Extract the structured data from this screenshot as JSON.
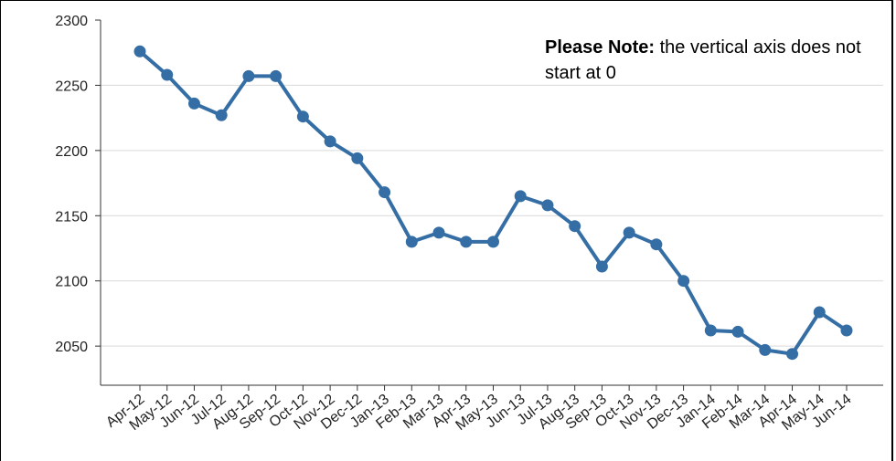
{
  "chart_data": {
    "type": "line",
    "title": "",
    "xlabel": "",
    "ylabel": "",
    "ylim": [
      2020,
      2300
    ],
    "yticks": [
      2050,
      2100,
      2150,
      2200,
      2250,
      2300
    ],
    "grid": true,
    "categories": [
      "Apr-12",
      "May-12",
      "Jun-12",
      "Jul-12",
      "Aug-12",
      "Sep-12",
      "Oct-12",
      "Nov-12",
      "Dec-12",
      "Jan-13",
      "Feb-13",
      "Mar-13",
      "Apr-13",
      "May-13",
      "Jun-13",
      "Jul-13",
      "Aug-13",
      "Sep-13",
      "Oct-13",
      "Nov-13",
      "Dec-13",
      "Jan-14",
      "Feb-14",
      "Mar-14",
      "Apr-14",
      "May-14",
      "Jun-14"
    ],
    "series": [
      {
        "values": [
          2276,
          2258,
          2236,
          2227,
          2257,
          2257,
          2226,
          2207,
          2194,
          2168,
          2130,
          2137,
          2130,
          2130,
          2165,
          2158,
          2142,
          2111,
          2137,
          2128,
          2100,
          2062,
          2061,
          2047,
          2044,
          2076,
          2062
        ],
        "color": "#356ea5"
      }
    ],
    "annotation": {
      "bold": "Please Note:",
      "rest": " the vertical axis does not start at 0"
    }
  },
  "colors": {
    "line": "#356ea5",
    "grid": "#d9d9d9",
    "axis": "#333333"
  }
}
